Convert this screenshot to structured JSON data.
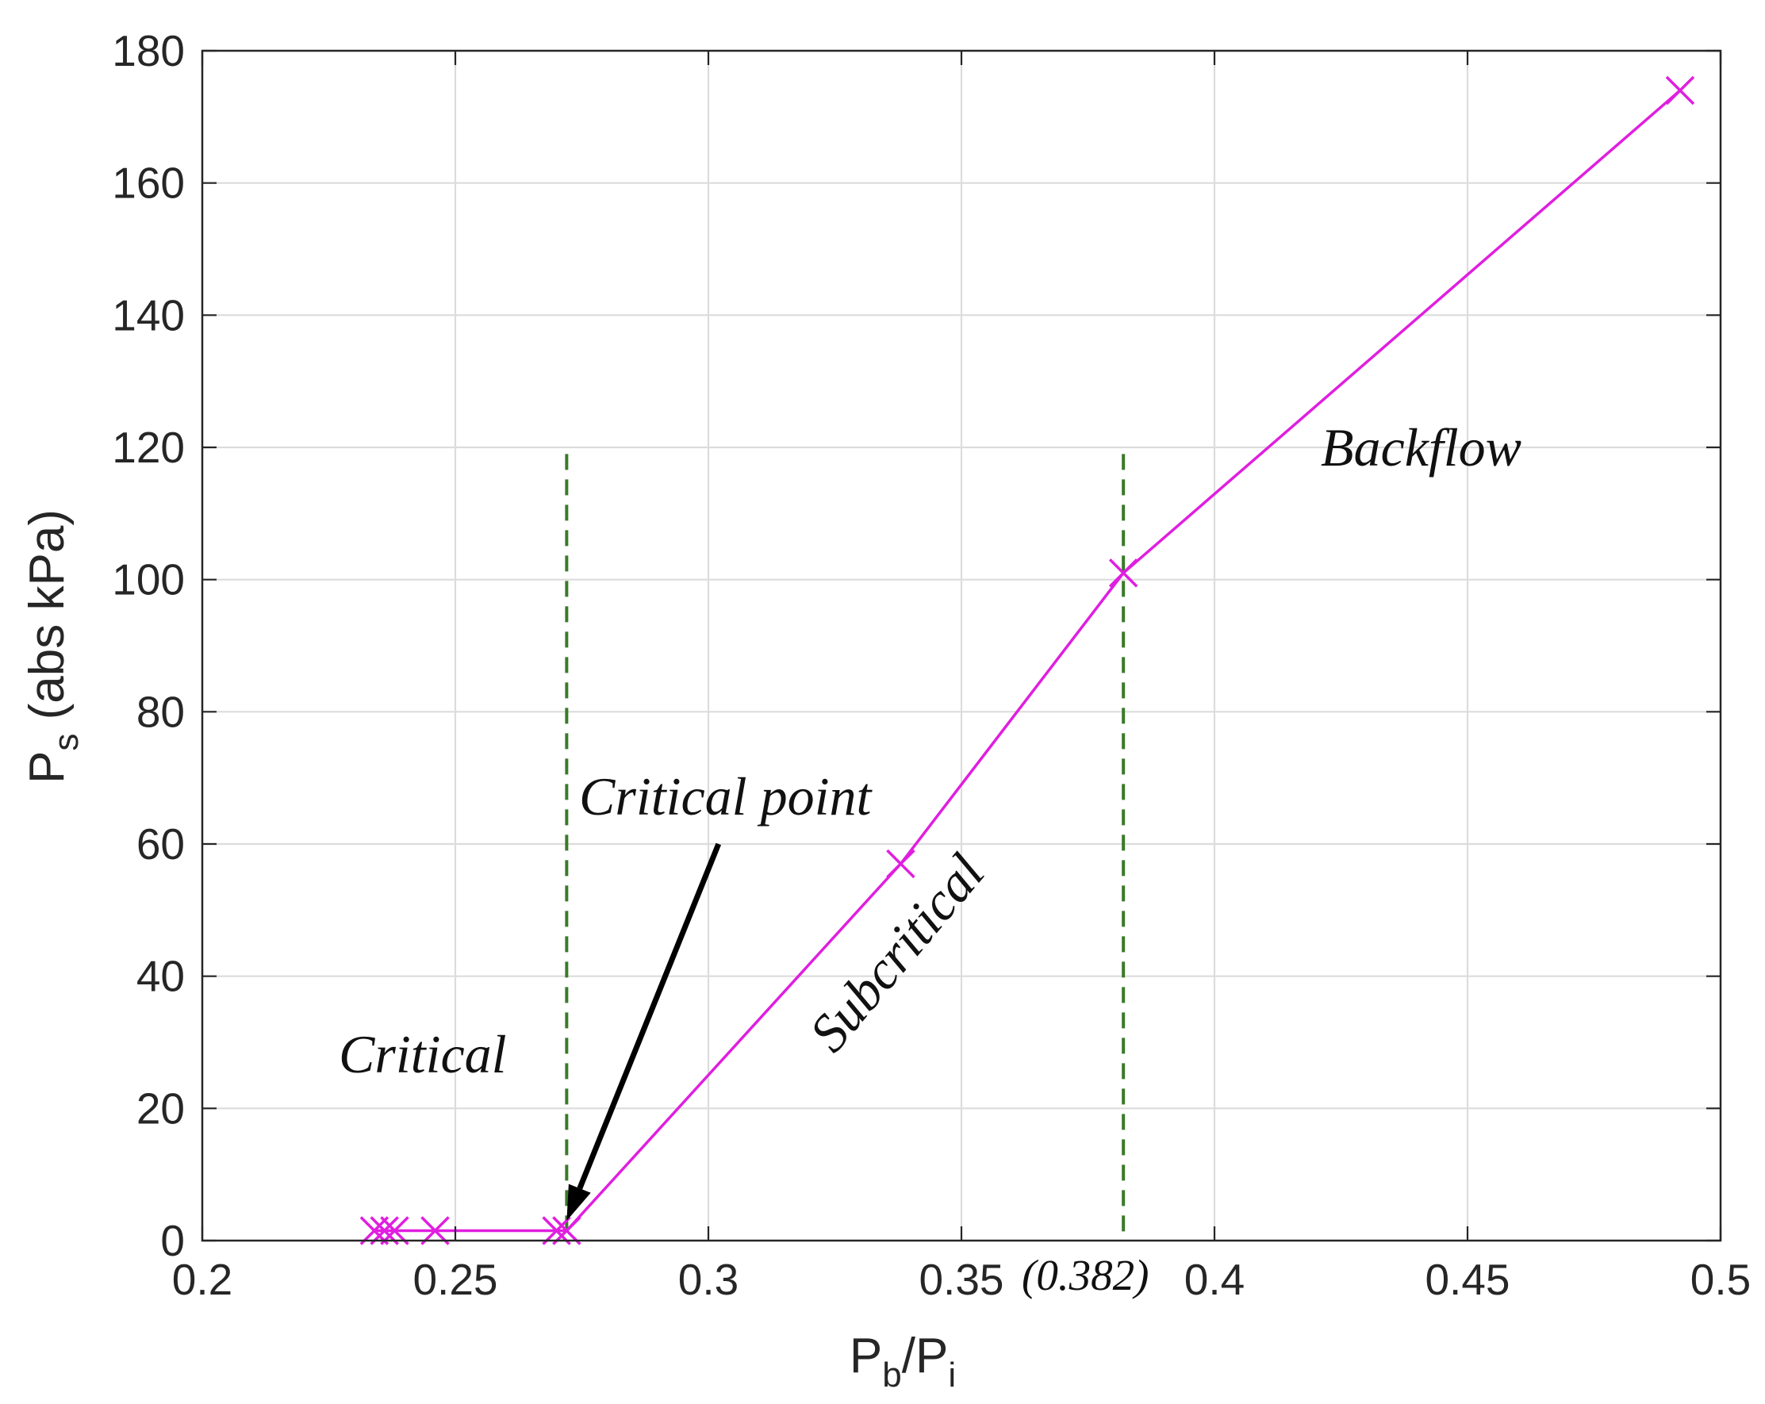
{
  "chart_data": {
    "type": "line",
    "xlabel": {
      "main": "P",
      "sub1": "b",
      "slash": "/P",
      "sub2": "i"
    },
    "ylabel": {
      "main": "P",
      "sub": "s",
      "rest": " (abs kPa)"
    },
    "xlim": [
      0.2,
      0.5
    ],
    "ylim": [
      0,
      180
    ],
    "xticks": [
      0.2,
      0.25,
      0.3,
      0.35,
      0.4,
      0.45,
      0.5
    ],
    "xtick_labels": [
      "0.2",
      "0.25",
      "0.3",
      "0.35",
      "0.4",
      "0.45",
      "0.5"
    ],
    "yticks": [
      0,
      20,
      40,
      60,
      80,
      100,
      120,
      140,
      160,
      180
    ],
    "ytick_labels": [
      "0",
      "20",
      "40",
      "60",
      "80",
      "100",
      "120",
      "140",
      "160",
      "180"
    ],
    "grid": true,
    "series": [
      {
        "color": "#e01ee0",
        "marker": "x",
        "x": [
          0.234,
          0.236,
          0.238,
          0.246,
          0.27,
          0.272,
          0.338,
          0.382,
          0.492
        ],
        "y": [
          1.5,
          1.5,
          1.5,
          1.5,
          1.5,
          1.5,
          57,
          101,
          174
        ]
      }
    ],
    "reference_lines": [
      {
        "x": 0.272,
        "y_top": 119,
        "color": "#3a7a2a",
        "style": "dashed"
      },
      {
        "x": 0.382,
        "y_top": 119,
        "color": "#3a7a2a",
        "style": "dashed"
      }
    ],
    "annotations": {
      "critical": "Critical",
      "critical_point": "Critical point",
      "subcritical": "Subcritical",
      "backflow": "Backflow",
      "x_value": "(0.382)"
    },
    "arrow": {
      "from": [
        0.302,
        60
      ],
      "to": [
        0.272,
        3
      ],
      "color": "#000000"
    }
  }
}
